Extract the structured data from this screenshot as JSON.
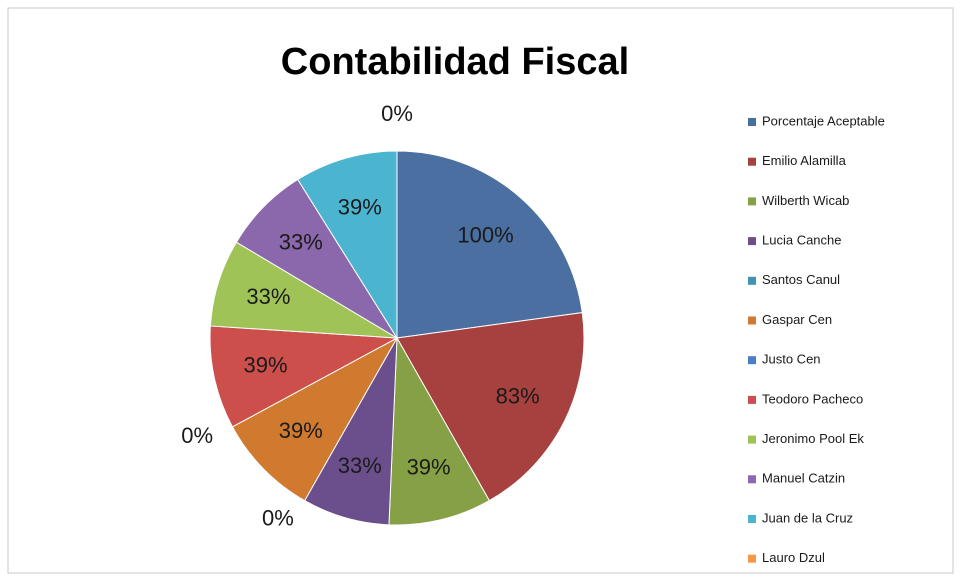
{
  "chart_data": {
    "type": "pie",
    "title": "Contabilidad Fiscal",
    "slices": [
      {
        "name": "Porcentaje Aceptable",
        "value": 100,
        "label": "100%",
        "color": "#4a6fa0"
      },
      {
        "name": "Emilio Alamilla",
        "value": 83,
        "label": "83%",
        "color": "#a7413f"
      },
      {
        "name": "Wilberth Wicab",
        "value": 39,
        "label": "39%",
        "color": "#86a046"
      },
      {
        "name": "Lucia Canche",
        "value": 33,
        "label": "33%",
        "color": "#6b4f8c"
      },
      {
        "name": "Santos Canul",
        "value": 0,
        "label": "0%",
        "color": "#3f93ad"
      },
      {
        "name": "Gaspar Cen",
        "value": 39,
        "label": "39%",
        "color": "#d07a30"
      },
      {
        "name": "Justo Cen",
        "value": 0,
        "label": "0%",
        "color": "#4a7ec6"
      },
      {
        "name": "Teodoro Pacheco",
        "value": 39,
        "label": "39%",
        "color": "#cd4f4c"
      },
      {
        "name": "Jeronimo Pool Ek",
        "value": 33,
        "label": "33%",
        "color": "#a0c357"
      },
      {
        "name": "Manuel Catzin",
        "value": 33,
        "label": "33%",
        "color": "#8a68ab"
      },
      {
        "name": "Juan de la Cruz",
        "value": 39,
        "label": "39%",
        "color": "#4bb5d0"
      },
      {
        "name": "Lauro Dzul",
        "value": 0,
        "label": "0%",
        "color": "#f39a48"
      }
    ],
    "legend_position": "right"
  }
}
